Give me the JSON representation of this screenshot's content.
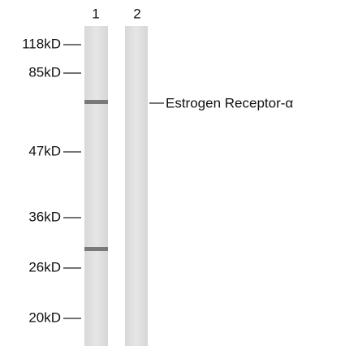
{
  "lanes": [
    "1",
    "2"
  ],
  "markers": [
    "118kD",
    "85kD",
    "47kD",
    "36kD",
    "26kD",
    "20kD"
  ],
  "target": "Estrogen Receptor-α"
}
